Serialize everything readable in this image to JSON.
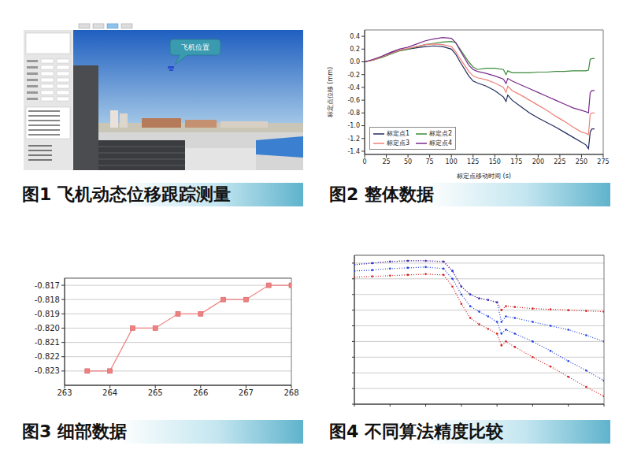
{
  "screenshot": {
    "title": "图1 飞机动态位移跟踪测量",
    "annotation": "飞机位置"
  },
  "chart_data": [
    {
      "type": "line",
      "title": "图2 整体数据",
      "x_label": "标定点移动时间 (s)",
      "y_label": "标定点位移 (mm)",
      "x": [
        0,
        10,
        20,
        30,
        40,
        50,
        60,
        70,
        80,
        90,
        100,
        105,
        110,
        120,
        125,
        130,
        140,
        150,
        160,
        163,
        165,
        170,
        180,
        190,
        200,
        210,
        220,
        230,
        240,
        250,
        255,
        258,
        260,
        262,
        265
      ],
      "series": [
        {
          "name": "标定点1",
          "color": "#1f2a5c",
          "values": [
            0,
            0.03,
            0.08,
            0.14,
            0.18,
            0.2,
            0.22,
            0.24,
            0.25,
            0.24,
            0.2,
            0.12,
            0.0,
            -0.22,
            -0.3,
            -0.33,
            -0.38,
            -0.45,
            -0.55,
            -0.62,
            -0.52,
            -0.6,
            -0.7,
            -0.8,
            -0.88,
            -0.95,
            -1.02,
            -1.1,
            -1.18,
            -1.26,
            -1.3,
            -1.36,
            -1.1,
            -1.05,
            -1.05
          ]
        },
        {
          "name": "标定点2",
          "color": "#3a8a3a",
          "values": [
            0,
            0.03,
            0.07,
            0.12,
            0.17,
            0.2,
            0.24,
            0.27,
            0.29,
            0.31,
            0.32,
            0.3,
            0.2,
            0,
            -0.08,
            -0.12,
            -0.1,
            -0.1,
            -0.12,
            -0.2,
            -0.14,
            -0.17,
            -0.17,
            -0.17,
            -0.16,
            -0.16,
            -0.15,
            -0.15,
            -0.14,
            -0.14,
            -0.14,
            -0.13,
            0.04,
            0.05,
            0.05
          ]
        },
        {
          "name": "标定点3",
          "color": "#f08078",
          "values": [
            0,
            0.03,
            0.08,
            0.13,
            0.18,
            0.21,
            0.24,
            0.27,
            0.28,
            0.27,
            0.24,
            0.16,
            0.05,
            -0.15,
            -0.22,
            -0.25,
            -0.28,
            -0.33,
            -0.4,
            -0.48,
            -0.38,
            -0.45,
            -0.52,
            -0.6,
            -0.68,
            -0.76,
            -0.85,
            -0.93,
            -1.02,
            -1.1,
            -1.12,
            -1.14,
            -0.82,
            -0.8,
            -0.8
          ]
        },
        {
          "name": "标定点4",
          "color": "#7a2a8c",
          "values": [
            0,
            0.04,
            0.09,
            0.15,
            0.2,
            0.23,
            0.28,
            0.33,
            0.36,
            0.38,
            0.37,
            0.3,
            0.18,
            -0.05,
            -0.12,
            -0.15,
            -0.18,
            -0.22,
            -0.27,
            -0.34,
            -0.26,
            -0.3,
            -0.36,
            -0.42,
            -0.48,
            -0.54,
            -0.6,
            -0.66,
            -0.72,
            -0.76,
            -0.78,
            -0.8,
            -0.48,
            -0.45,
            -0.45
          ]
        }
      ],
      "xlim": [
        0,
        275
      ],
      "xticks": [
        0,
        25,
        50,
        75,
        100,
        125,
        150,
        175,
        200,
        225,
        250,
        275
      ],
      "ylim": [
        -1.45,
        0.5
      ],
      "yticks": [
        -1.4,
        -1.2,
        {
          "value": -1,
          "label": "-1.0"
        },
        -0.8,
        -0.6,
        -0.4,
        -0.2,
        {
          "value": 0,
          "label": "0.0"
        },
        0.2,
        0.4
      ],
      "grid": false,
      "legend": "lower left"
    },
    {
      "type": "line",
      "title": "图3 细部数据",
      "x": [
        263.5,
        264,
        264.5,
        265,
        265.5,
        266,
        266.5,
        267,
        267.5,
        268
      ],
      "series": [
        {
          "color": "#f08080",
          "marker": "square",
          "values": [
            -0.823,
            -0.823,
            -0.82,
            -0.82,
            -0.819,
            -0.819,
            -0.818,
            -0.818,
            -0.817,
            -0.817
          ]
        }
      ],
      "xlim": [
        263,
        268
      ],
      "xticks": [
        263,
        264,
        265,
        266,
        267,
        268
      ],
      "ylim": [
        -0.824,
        -0.8165
      ],
      "yticks": [
        -0.823,
        -0.822,
        -0.821,
        {
          "value": -0.82,
          "label": "-0.820"
        },
        -0.819,
        -0.818,
        -0.817
      ],
      "grid": true
    },
    {
      "type": "line",
      "title": "图4 不同算法精度比较",
      "x": [
        0,
        20,
        40,
        60,
        80,
        100,
        110,
        120,
        130,
        140,
        150,
        160,
        165,
        170,
        180,
        200,
        220,
        240,
        260,
        280
      ],
      "series": [
        {
          "color": "#d42020",
          "values": [
            0.38,
            0.4,
            0.42,
            0.43,
            0.43,
            0.42,
            0.3,
            0.1,
            0,
            -0.05,
            -0.07,
            -0.1,
            -0.2,
            -0.15,
            -0.16,
            -0.18,
            -0.19,
            -0.2,
            -0.21,
            -0.22
          ]
        },
        {
          "color": "#2040e0",
          "values": [
            0.38,
            0.4,
            0.42,
            0.43,
            0.43,
            0.42,
            0.3,
            0.1,
            0,
            -0.05,
            -0.07,
            -0.1,
            -0.35,
            -0.28,
            -0.3,
            -0.35,
            -0.4,
            -0.45,
            -0.52,
            -0.6
          ]
        },
        {
          "color": "#2040e0",
          "values": [
            0.3,
            0.31,
            0.33,
            0.34,
            0.35,
            0.33,
            0.2,
            0,
            -0.15,
            -0.22,
            -0.28,
            -0.35,
            -0.5,
            -0.45,
            -0.5,
            -0.6,
            -0.72,
            -0.85,
            -0.97,
            -1.1
          ]
        },
        {
          "color": "#d42020",
          "values": [
            0.22,
            0.23,
            0.24,
            0.25,
            0.26,
            0.25,
            0.1,
            -0.12,
            -0.3,
            -0.38,
            -0.44,
            -0.5,
            -0.65,
            -0.6,
            -0.67,
            -0.8,
            -0.92,
            -1.05,
            -1.18,
            -1.3
          ]
        }
      ],
      "xlim": [
        0,
        280
      ],
      "xticks": [
        0,
        40,
        80,
        120,
        160,
        200,
        240,
        280
      ],
      "ylim": [
        -1.4,
        0.5
      ],
      "yticks": [
        -1.4,
        -1.2,
        -1,
        -0.8,
        -0.6,
        -0.4,
        -0.2,
        0,
        0.2,
        0.4
      ],
      "grid": true,
      "tick_labels": false,
      "line_style": "dotted",
      "marker": "dot"
    }
  ]
}
